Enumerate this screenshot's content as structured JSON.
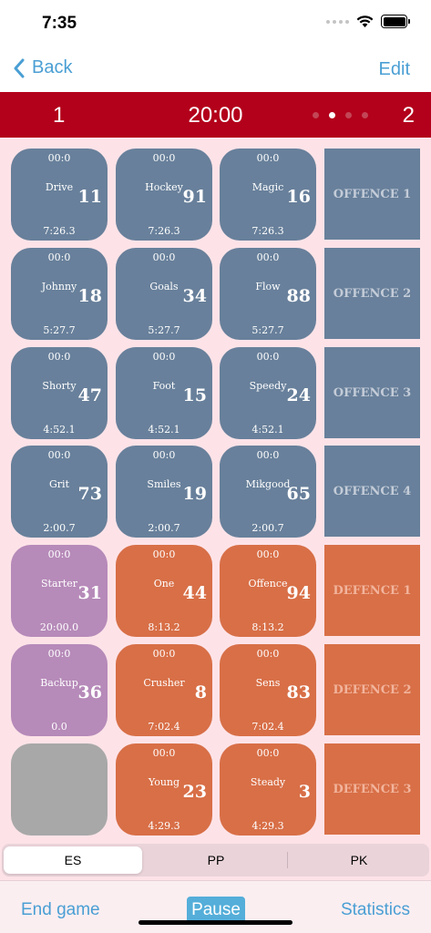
{
  "status": {
    "time": "7:35"
  },
  "nav": {
    "back_label": "Back",
    "edit_label": "Edit"
  },
  "scoreboard": {
    "left": "1",
    "clock": "20:00",
    "right": "2",
    "page_dots": 4,
    "active_dot": 2
  },
  "rows": [
    {
      "tiles": [
        {
          "top": "00:0",
          "name": "Drive",
          "number": "11",
          "bottom": "7:26.3",
          "color": "grey"
        },
        {
          "top": "00:0",
          "name": "Hockey",
          "number": "91",
          "bottom": "7:26.3",
          "color": "grey"
        },
        {
          "top": "00:0",
          "name": "Magic",
          "number": "16",
          "bottom": "7:26.3",
          "color": "grey"
        }
      ],
      "line_label": "OFFENCE 1",
      "line_color": "grey"
    },
    {
      "tiles": [
        {
          "top": "00:0",
          "name": "Johnny",
          "number": "18",
          "bottom": "5:27.7",
          "color": "grey"
        },
        {
          "top": "00:0",
          "name": "Goals",
          "number": "34",
          "bottom": "5:27.7",
          "color": "grey"
        },
        {
          "top": "00:0",
          "name": "Flow",
          "number": "88",
          "bottom": "5:27.7",
          "color": "grey"
        }
      ],
      "line_label": "OFFENCE 2",
      "line_color": "grey"
    },
    {
      "tiles": [
        {
          "top": "00:0",
          "name": "Shorty",
          "number": "47",
          "bottom": "4:52.1",
          "color": "grey"
        },
        {
          "top": "00:0",
          "name": "Foot",
          "number": "15",
          "bottom": "4:52.1",
          "color": "grey"
        },
        {
          "top": "00:0",
          "name": "Speedy",
          "number": "24",
          "bottom": "4:52.1",
          "color": "grey"
        }
      ],
      "line_label": "OFFENCE 3",
      "line_color": "grey"
    },
    {
      "tiles": [
        {
          "top": "00:0",
          "name": "Grit",
          "number": "73",
          "bottom": "2:00.7",
          "color": "grey"
        },
        {
          "top": "00:0",
          "name": "Smiles",
          "number": "19",
          "bottom": "2:00.7",
          "color": "grey"
        },
        {
          "top": "00:0",
          "name": "Mikgood",
          "number": "65",
          "bottom": "2:00.7",
          "color": "grey"
        }
      ],
      "line_label": "OFFENCE 4",
      "line_color": "grey"
    },
    {
      "tiles": [
        {
          "top": "00:0",
          "name": "Starter",
          "number": "31",
          "bottom": "20:00.0",
          "color": "purple"
        },
        {
          "top": "00:0",
          "name": "One",
          "number": "44",
          "bottom": "8:13.2",
          "color": "orange"
        },
        {
          "top": "00:0",
          "name": "Offence",
          "number": "94",
          "bottom": "8:13.2",
          "color": "orange"
        }
      ],
      "line_label": "DEFENCE 1",
      "line_color": "orange"
    },
    {
      "tiles": [
        {
          "top": "00:0",
          "name": "Backup",
          "number": "36",
          "bottom": "0.0",
          "color": "purple"
        },
        {
          "top": "00:0",
          "name": "Crusher",
          "number": "8",
          "bottom": "7:02.4",
          "color": "orange"
        },
        {
          "top": "00:0",
          "name": "Sens",
          "number": "83",
          "bottom": "7:02.4",
          "color": "orange"
        }
      ],
      "line_label": "DEFENCE 2",
      "line_color": "orange"
    },
    {
      "tiles": [
        {
          "top": "",
          "name": "",
          "number": "",
          "bottom": "",
          "color": "empty"
        },
        {
          "top": "00:0",
          "name": "Young",
          "number": "23",
          "bottom": "4:29.3",
          "color": "orange"
        },
        {
          "top": "00:0",
          "name": "Steady",
          "number": "3",
          "bottom": "4:29.3",
          "color": "orange"
        }
      ],
      "line_label": "DEFENCE 3",
      "line_color": "orange"
    }
  ],
  "segments": {
    "es": "ES",
    "pp": "PP",
    "pk": "PK",
    "selected": "ES"
  },
  "toolbar": {
    "end_game": "End game",
    "pause": "Pause",
    "statistics": "Statistics"
  },
  "colors": {
    "header_red": "#b3001b",
    "accent_blue": "#4a9fd4",
    "tile_grey": "#68809b",
    "tile_orange": "#d86f47",
    "tile_purple": "#b68ab9",
    "board_pink": "#fde3e8"
  }
}
